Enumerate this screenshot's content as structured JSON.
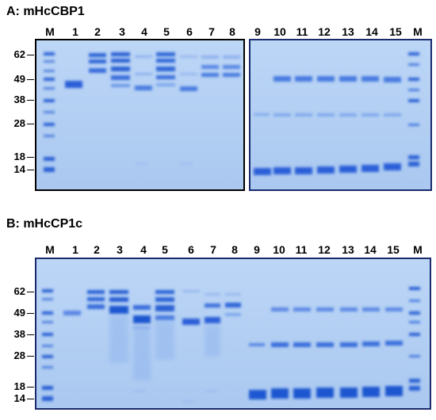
{
  "panels": [
    {
      "id": "A",
      "title": "A: mHcCBP1",
      "lanes": [
        "M",
        "1",
        "2",
        "3",
        "4",
        "5",
        "6",
        "7",
        "8",
        "9",
        "10",
        "11",
        "12",
        "13",
        "14",
        "15",
        "M"
      ],
      "mw_markers": [
        "62",
        "49",
        "38",
        "28",
        "18",
        "14"
      ]
    },
    {
      "id": "B",
      "title": "B: mHcCP1c",
      "lanes": [
        "M",
        "1",
        "2",
        "3",
        "4",
        "5",
        "6",
        "7",
        "8",
        "9",
        "10",
        "11",
        "12",
        "13",
        "14",
        "15",
        "M"
      ],
      "mw_markers": [
        "62",
        "49",
        "38",
        "28",
        "18",
        "14"
      ]
    }
  ],
  "colors": {
    "gel_bg": "#b8d4f4",
    "band_dark": "#1e56d0",
    "band_mid": "#3f76e0",
    "band_light": "#7fa8ec",
    "border_A_left": "#000000",
    "border_A_right": "#1a2a6c",
    "border_B": "#1a2a6c"
  }
}
